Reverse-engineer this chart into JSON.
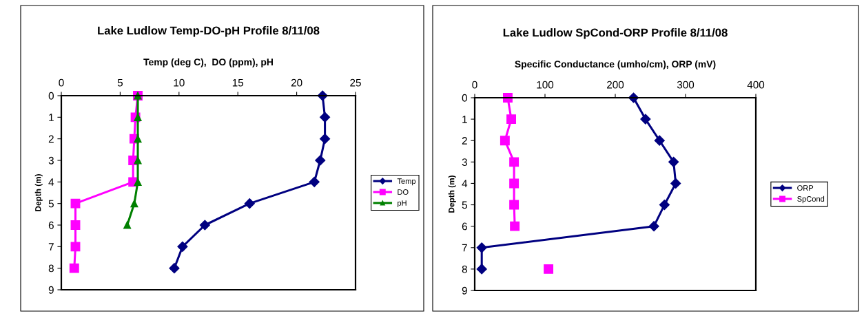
{
  "chart_data": [
    {
      "type": "line",
      "title": "Lake Ludlow Temp-DO-pH Profile 8/11/08",
      "xlabel": "Temp (deg C),  DO (ppm), pH",
      "ylabel": "Depth (m)",
      "xlim": [
        0,
        25
      ],
      "xticks": [
        0,
        5,
        10,
        15,
        20,
        25
      ],
      "ylim": [
        9,
        0
      ],
      "yticks": [
        0,
        1,
        2,
        3,
        4,
        5,
        6,
        7,
        8,
        9
      ],
      "grid": false,
      "legend": "right",
      "series": [
        {
          "name": "Temp",
          "color": "#000080",
          "marker": "diamond",
          "x": [
            22.2,
            22.4,
            22.4,
            22.0,
            21.5,
            16.0,
            12.2,
            10.3,
            9.6
          ],
          "values": [
            0,
            1,
            2,
            3,
            4,
            5,
            6,
            7,
            8
          ]
        },
        {
          "name": "DO",
          "color": "#ff00ff",
          "marker": "square",
          "x": [
            6.5,
            6.3,
            6.2,
            6.1,
            6.1,
            1.2,
            1.2,
            1.2,
            1.1
          ],
          "values": [
            0,
            1,
            2,
            3,
            4,
            5,
            6,
            7,
            8
          ]
        },
        {
          "name": "pH",
          "color": "#008000",
          "marker": "triangle",
          "x": [
            6.5,
            6.5,
            6.5,
            6.5,
            6.5,
            6.2,
            5.6
          ],
          "values": [
            0,
            1,
            2,
            3,
            4,
            5,
            6
          ]
        }
      ]
    },
    {
      "type": "line",
      "title": "Lake Ludlow SpCond-ORP Profile 8/11/08",
      "xlabel": "Specific Conductance (umho/cm), ORP (mV)",
      "ylabel": "Depth (m)",
      "xlim": [
        0,
        400
      ],
      "xticks": [
        0,
        100,
        200,
        300,
        400
      ],
      "ylim": [
        9,
        0
      ],
      "yticks": [
        0,
        1,
        2,
        3,
        4,
        5,
        6,
        7,
        8,
        9
      ],
      "grid": false,
      "legend": "right",
      "series": [
        {
          "name": "ORP",
          "color": "#000080",
          "marker": "diamond",
          "x": [
            226,
            243,
            263,
            283,
            286,
            270,
            255,
            10,
            10
          ],
          "values": [
            0,
            1,
            2,
            3,
            4,
            5,
            6,
            7,
            8
          ]
        },
        {
          "name": "SpCond",
          "color": "#ff00ff",
          "marker": "square",
          "x": [
            47,
            52,
            43,
            56,
            56,
            56,
            57,
            null,
            105
          ],
          "values": [
            0,
            1,
            2,
            3,
            4,
            5,
            6,
            null,
            8
          ]
        }
      ]
    }
  ]
}
